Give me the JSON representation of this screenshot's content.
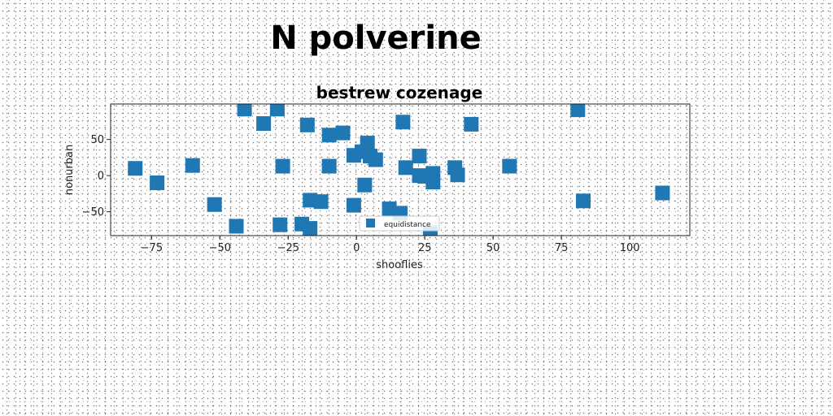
{
  "suptitle": "N polverine",
  "chart_data": {
    "type": "scatter",
    "title": "bestrew cozenage",
    "xlabel": "shooflies",
    "ylabel": "nonurban",
    "xlim": [
      -90,
      122
    ],
    "ylim": [
      -83,
      99
    ],
    "xticks": [
      -75,
      -50,
      -25,
      0,
      25,
      50,
      75,
      100
    ],
    "yticks": [
      -50,
      0,
      50
    ],
    "grid": false,
    "legend": {
      "placement": "lower-center",
      "entries": [
        "equidistance"
      ]
    },
    "series": [
      {
        "name": "equidistance",
        "color": "#1f77b4",
        "marker": "square",
        "points": [
          {
            "x": -41,
            "y": 92
          },
          {
            "x": -29,
            "y": 92
          },
          {
            "x": -34,
            "y": 72
          },
          {
            "x": -18,
            "y": 70
          },
          {
            "x": -10,
            "y": 56
          },
          {
            "x": -5,
            "y": 59
          },
          {
            "x": 17,
            "y": 74
          },
          {
            "x": 42,
            "y": 71
          },
          {
            "x": 81,
            "y": 91
          },
          {
            "x": 4,
            "y": 45
          },
          {
            "x": -1,
            "y": 28
          },
          {
            "x": 2,
            "y": 33
          },
          {
            "x": 5,
            "y": 27
          },
          {
            "x": 7,
            "y": 22
          },
          {
            "x": 23,
            "y": 27
          },
          {
            "x": -81,
            "y": 10
          },
          {
            "x": -60,
            "y": 14
          },
          {
            "x": -27,
            "y": 13
          },
          {
            "x": -10,
            "y": 13
          },
          {
            "x": 18,
            "y": 11
          },
          {
            "x": 23,
            "y": 0
          },
          {
            "x": 25,
            "y": -1
          },
          {
            "x": 28,
            "y": 3
          },
          {
            "x": 36,
            "y": 11
          },
          {
            "x": 37,
            "y": 1
          },
          {
            "x": 56,
            "y": 13
          },
          {
            "x": -73,
            "y": -10
          },
          {
            "x": 3,
            "y": -13
          },
          {
            "x": 28,
            "y": -9
          },
          {
            "x": -52,
            "y": -40
          },
          {
            "x": -17,
            "y": -34
          },
          {
            "x": -13,
            "y": -36
          },
          {
            "x": -1,
            "y": -41
          },
          {
            "x": 12,
            "y": -46
          },
          {
            "x": 16,
            "y": -52
          },
          {
            "x": 83,
            "y": -35
          },
          {
            "x": 112,
            "y": -24
          },
          {
            "x": -44,
            "y": -70
          },
          {
            "x": -28,
            "y": -68
          },
          {
            "x": -20,
            "y": -67
          },
          {
            "x": -17,
            "y": -73
          },
          {
            "x": 27,
            "y": -79
          }
        ]
      }
    ]
  }
}
